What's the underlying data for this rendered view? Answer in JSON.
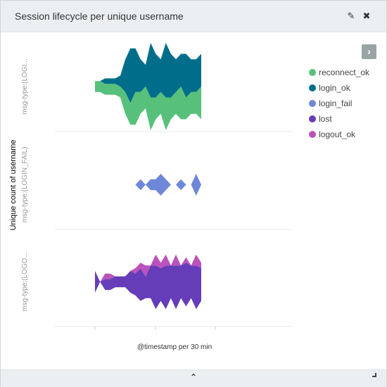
{
  "panel": {
    "title": "Session lifecycle per unique username",
    "edit_icon": "pencil-icon",
    "close_icon": "close-icon",
    "collapse_icon": "chevron-up-icon",
    "legend_toggle_icon": "chevron-right-icon"
  },
  "chart_data": {
    "type": "area",
    "stacked": true,
    "layout": "split-rows",
    "xlabel": "@timestamp per 30 min",
    "ylabel": "Unique count of username",
    "legend_position": "right",
    "grid": false,
    "rows": [
      {
        "label": "msg-type:(LOGI...",
        "series": [
          "reconnect_ok",
          "login_ok"
        ]
      },
      {
        "label": "msg-type:(LOGIN_FAIL)",
        "series": [
          "login_fail"
        ]
      },
      {
        "label": "msg-type:(LOGO...",
        "series": [
          "lost",
          "logout_ok"
        ]
      }
    ],
    "series": [
      {
        "name": "reconnect_ok",
        "color": "#57c17b",
        "values": [
          1,
          1,
          1,
          1,
          1,
          1,
          2,
          2,
          3,
          2,
          2,
          3,
          2,
          2,
          3,
          2,
          2,
          3,
          2,
          2,
          2,
          3
        ]
      },
      {
        "name": "login_ok",
        "color": "#006e8a",
        "values": [
          0,
          0,
          0.5,
          0.5,
          0.5,
          1,
          3,
          5,
          4,
          3,
          2,
          5,
          4,
          3,
          5,
          4,
          3,
          3,
          4,
          3,
          3,
          3
        ]
      },
      {
        "name": "login_fail",
        "color": "#6f87d8",
        "values": [
          0,
          0,
          0,
          0,
          0,
          0,
          0,
          0,
          0,
          1,
          0,
          1,
          1,
          2,
          1,
          0,
          0,
          1,
          0,
          0,
          2,
          0
        ]
      },
      {
        "name": "lost",
        "color": "#663db8",
        "values": [
          2,
          0,
          1,
          1,
          1,
          1,
          1,
          2,
          2,
          3,
          2,
          3,
          4,
          3,
          4,
          3,
          4,
          3,
          4,
          3,
          4,
          3
        ]
      },
      {
        "name": "logout_ok",
        "color": "#bc52bc",
        "values": [
          0,
          0,
          0.5,
          0.5,
          0,
          0,
          0,
          0,
          0.5,
          0.5,
          1,
          0,
          1,
          0.5,
          1,
          0,
          1,
          0,
          0.5,
          0,
          1,
          0.5
        ]
      }
    ]
  }
}
